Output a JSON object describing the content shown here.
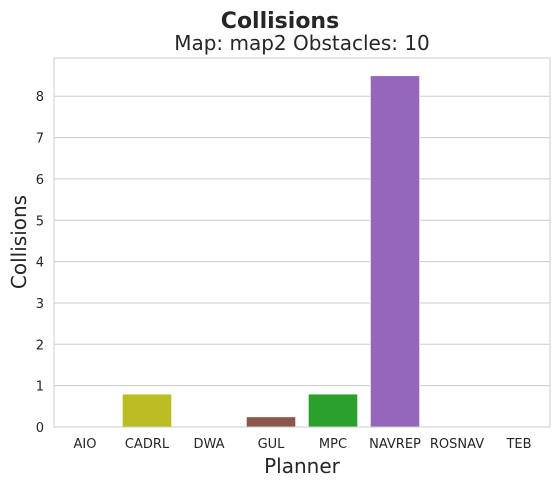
{
  "chart_data": {
    "type": "bar",
    "suptitle": "Collisions",
    "title": "Map: map2 Obstacles: 10",
    "xlabel": "Planner",
    "ylabel": "Collisions",
    "categories": [
      "AIO",
      "CADRL",
      "DWA",
      "GUL",
      "MPC",
      "NAVREP",
      "ROSNAV",
      "TEB"
    ],
    "values": [
      0,
      0.8,
      0,
      0.25,
      0.8,
      8.5,
      0,
      0
    ],
    "colors": [
      "#1f77b4",
      "#bcbd22",
      "#e377c2",
      "#8c564b",
      "#2ca02c",
      "#9467bd",
      "#ff7f0e",
      "#17becf"
    ],
    "yticks": [
      "0",
      "1",
      "2",
      "3",
      "4",
      "5",
      "6",
      "7",
      "8"
    ],
    "ylim": [
      0,
      8.925
    ],
    "grid": "horizontal",
    "legend": "none"
  }
}
